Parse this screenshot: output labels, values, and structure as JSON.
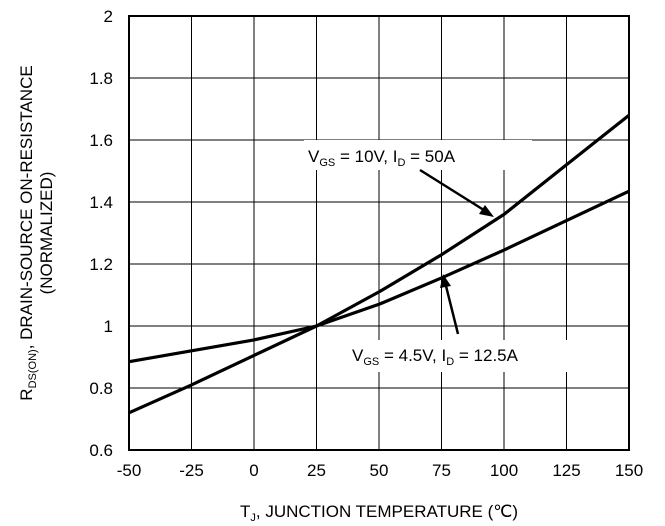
{
  "chart_data": {
    "type": "line",
    "x": [
      -50,
      -25,
      0,
      25,
      50,
      75,
      100,
      125,
      150
    ],
    "xlim": [
      -50,
      150
    ],
    "ylim": [
      0.6,
      2
    ],
    "x_ticks": [
      "-50",
      "-25",
      "0",
      "25",
      "50",
      "75",
      "100",
      "125",
      "150"
    ],
    "y_ticks": [
      "0.6",
      "0.8",
      "1",
      "1.2",
      "1.4",
      "1.6",
      "1.8",
      "2"
    ],
    "xlabel": {
      "main": "T",
      "sub": "J",
      "rest": ", JUNCTION TEMPERATURE (℃)"
    },
    "ylabel": {
      "line1_main": "R",
      "line1_sub": "DS(ON)",
      "line1_rest": ", DRAIN-SOURCE ON-RESISTANCE",
      "line2": "(NORMALIZED)"
    },
    "grid": true,
    "series": [
      {
        "label_parts": {
          "v": "V",
          "vsub": "GS",
          "vval": " = 10V, I",
          "isub": "D",
          "ival": " = 50A"
        },
        "values": [
          0.72,
          0.81,
          0.905,
          1.0,
          1.11,
          1.23,
          1.36,
          1.52,
          1.68
        ]
      },
      {
        "label_parts": {
          "v": "V",
          "vsub": "GS",
          "vval": " = 4.5V, I",
          "isub": "D",
          "ival": " = 12.5A"
        },
        "values": [
          0.885,
          0.92,
          0.955,
          1.0,
          1.07,
          1.155,
          1.245,
          1.34,
          1.435
        ]
      }
    ]
  }
}
